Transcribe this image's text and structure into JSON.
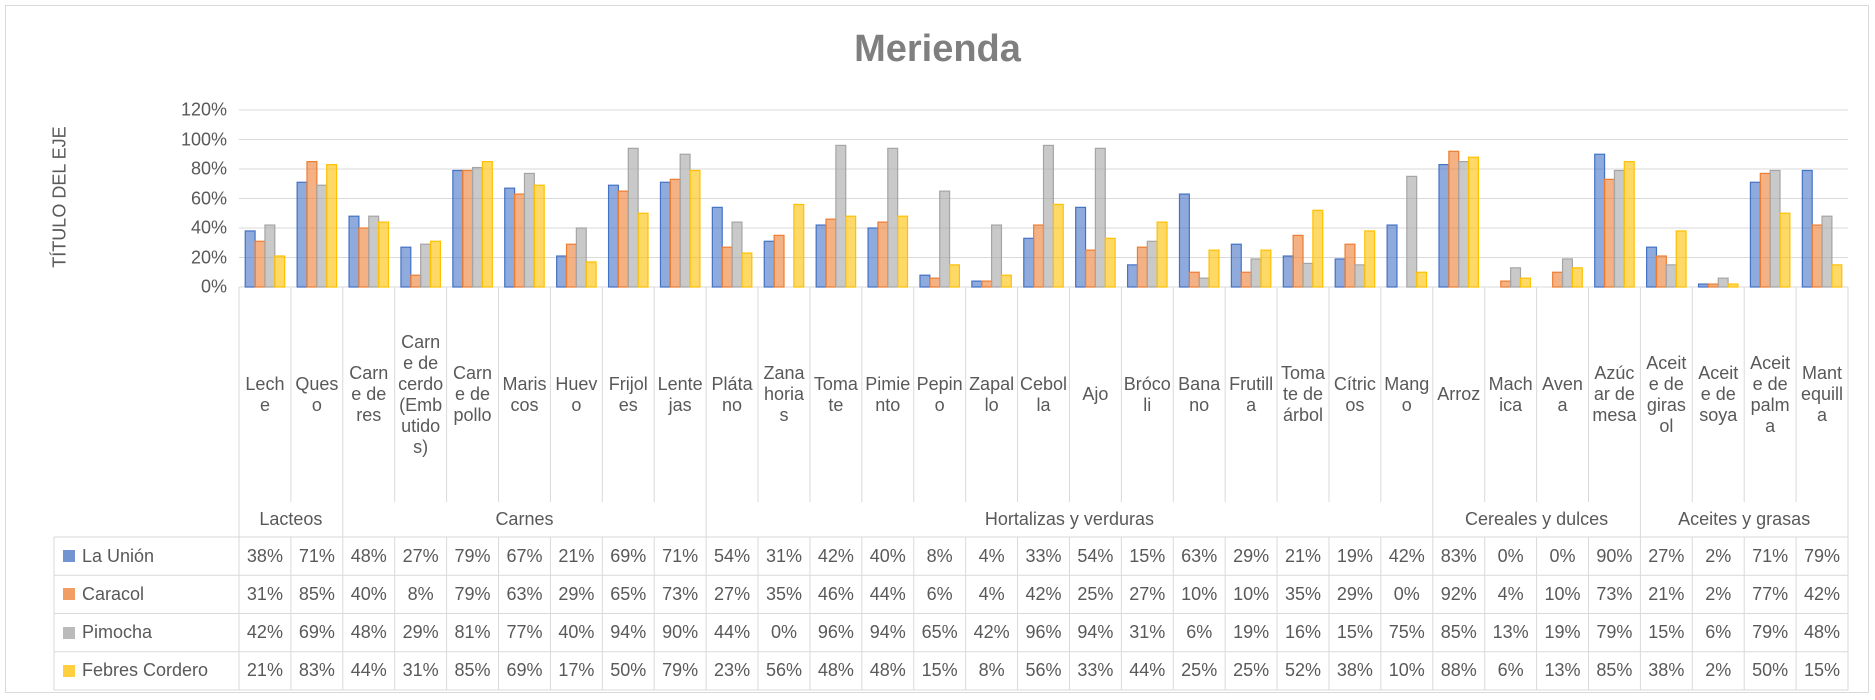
{
  "chart_data": {
    "type": "bar",
    "title": "Merienda",
    "y_axis_title": "TÍTULO DEL EJE",
    "groups": [
      {
        "name": "Lacteos",
        "categories": [
          "Leche",
          "Queso"
        ]
      },
      {
        "name": "Carnes",
        "categories": [
          "Carne de res",
          "Carne de cerdo (Embutidos)",
          "Carne de pollo",
          "Mariscos",
          "Huevo",
          "Frijoles",
          "Lentejas"
        ]
      },
      {
        "name": "Hortalizas y verduras",
        "categories": [
          "Plátano",
          "Zanahorias",
          "Tomate",
          "Pimiento",
          "Pepino",
          "Zapallo",
          "Cebolla",
          "Ajo",
          "Brócoli",
          "Banano",
          "Frutilla",
          "Tomate de árbol",
          "Cítricos",
          "Mango"
        ]
      },
      {
        "name": "Cereales y dulces",
        "categories": [
          "Arroz",
          "Machica",
          "Avena",
          "Azúcar de mesa"
        ]
      },
      {
        "name": "Aceites y grasas",
        "categories": [
          "Aceite de girasol",
          "Aceite de soya",
          "Aceite de palma",
          "Mantequilla"
        ]
      }
    ],
    "series": [
      {
        "name": "La Unión",
        "color": "#4472c4",
        "values": [
          38,
          71,
          48,
          27,
          79,
          67,
          21,
          69,
          71,
          54,
          31,
          42,
          40,
          8,
          4,
          33,
          54,
          15,
          63,
          29,
          21,
          19,
          42,
          83,
          0,
          0,
          90,
          27,
          2,
          71,
          79
        ],
        "value_labels": [
          "38%",
          "71%",
          "48%",
          "27%",
          "79%",
          "67%",
          "21%",
          "69%",
          "71%",
          "54%",
          "31%",
          "42%",
          "40%",
          "8%",
          "4%",
          "33%",
          "54%",
          "15%",
          "63%",
          "29%",
          "21%",
          "19%",
          "42%",
          "83%",
          "0%",
          "0%",
          "90%",
          "27%",
          "2%",
          "71%",
          "79%"
        ]
      },
      {
        "name": "Caracol",
        "color": "#ed7d31",
        "values": [
          31,
          85,
          40,
          8,
          79,
          63,
          29,
          65,
          73,
          27,
          35,
          46,
          44,
          6,
          4,
          42,
          25,
          27,
          10,
          10,
          35,
          29,
          0,
          92,
          4,
          10,
          73,
          21,
          2,
          77,
          42
        ],
        "value_labels": [
          "31%",
          "85%",
          "40%",
          "8%",
          "79%",
          "63%",
          "29%",
          "65%",
          "73%",
          "27%",
          "35%",
          "46%",
          "44%",
          "6%",
          "4%",
          "42%",
          "25%",
          "27%",
          "10%",
          "10%",
          "35%",
          "29%",
          "0%",
          "92%",
          "4%",
          "10%",
          "73%",
          "21%",
          "2%",
          "77%",
          "42%"
        ]
      },
      {
        "name": "Pimocha",
        "color": "#a5a5a5",
        "values": [
          42,
          69,
          48,
          29,
          81,
          77,
          40,
          94,
          90,
          44,
          0,
          96,
          94,
          65,
          42,
          96,
          94,
          31,
          6,
          19,
          16,
          15,
          75,
          85,
          13,
          19,
          79,
          15,
          6,
          79,
          48
        ],
        "value_labels": [
          "42%",
          "69%",
          "48%",
          "29%",
          "81%",
          "77%",
          "40%",
          "94%",
          "90%",
          "44%",
          "0%",
          "96%",
          "94%",
          "65%",
          "42%",
          "96%",
          "94%",
          "31%",
          "6%",
          "19%",
          "16%",
          "15%",
          "75%",
          "85%",
          "13%",
          "19%",
          "79%",
          "15%",
          "6%",
          "79%",
          "48%"
        ]
      },
      {
        "name": "Febres Cordero",
        "color": "#ffc000",
        "values": [
          21,
          83,
          44,
          31,
          85,
          69,
          17,
          50,
          79,
          23,
          56,
          48,
          48,
          15,
          8,
          56,
          33,
          44,
          25,
          25,
          52,
          38,
          10,
          88,
          6,
          13,
          85,
          38,
          2,
          50,
          15
        ],
        "value_labels": [
          "21%",
          "83%",
          "44%",
          "31%",
          "85%",
          "69%",
          "17%",
          "50%",
          "79%",
          "23%",
          "56%",
          "48%",
          "48%",
          "15%",
          "8%",
          "56%",
          "33%",
          "44%",
          "25%",
          "25%",
          "52%",
          "38%",
          "10%",
          "88%",
          "6%",
          "13%",
          "85%",
          "38%",
          "2%",
          "50%",
          "15%"
        ]
      }
    ],
    "ylim": [
      0,
      120
    ],
    "yticks": [
      {
        "value": 0,
        "label": "0%"
      },
      {
        "value": 20,
        "label": "20%"
      },
      {
        "value": 40,
        "label": "40%"
      },
      {
        "value": 60,
        "label": "60%"
      },
      {
        "value": 80,
        "label": "80%"
      },
      {
        "value": 100,
        "label": "100%"
      },
      {
        "value": 120,
        "label": "120%"
      }
    ],
    "grid": true
  }
}
